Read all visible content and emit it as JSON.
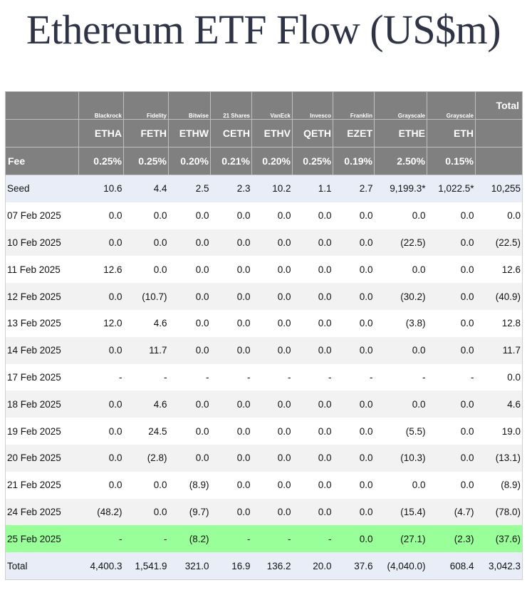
{
  "title": "Ethereum ETF Flow (US$m)",
  "issuers": [
    "Blackrock",
    "Fidelity",
    "Bitwise",
    "21 Shares",
    "VanEck",
    "Invesco",
    "Franklin",
    "Grayscale",
    "Grayscale"
  ],
  "total_label": "Total",
  "tickers": [
    "ETHA",
    "FETH",
    "ETHW",
    "CETH",
    "ETHV",
    "QETH",
    "EZET",
    "ETHE",
    "ETH"
  ],
  "fee_label": "Fee",
  "fees": [
    "0.25%",
    "0.25%",
    "0.20%",
    "0.21%",
    "0.20%",
    "0.25%",
    "0.19%",
    "2.50%",
    "0.15%"
  ],
  "rows": [
    {
      "label": "Seed",
      "values": [
        "10.6",
        "4.4",
        "2.5",
        "2.3",
        "10.2",
        "1.1",
        "2.7",
        "9,199.3*",
        "1,022.5*",
        "10,255"
      ]
    },
    {
      "label": "07 Feb 2025",
      "values": [
        "0.0",
        "0.0",
        "0.0",
        "0.0",
        "0.0",
        "0.0",
        "0.0",
        "0.0",
        "0.0",
        "0.0"
      ]
    },
    {
      "label": "10 Feb 2025",
      "values": [
        "0.0",
        "0.0",
        "0.0",
        "0.0",
        "0.0",
        "0.0",
        "0.0",
        "(22.5)",
        "0.0",
        "(22.5)"
      ]
    },
    {
      "label": "11 Feb 2025",
      "values": [
        "12.6",
        "0.0",
        "0.0",
        "0.0",
        "0.0",
        "0.0",
        "0.0",
        "0.0",
        "0.0",
        "12.6"
      ]
    },
    {
      "label": "12 Feb 2025",
      "values": [
        "0.0",
        "(10.7)",
        "0.0",
        "0.0",
        "0.0",
        "0.0",
        "0.0",
        "(30.2)",
        "0.0",
        "(40.9)"
      ]
    },
    {
      "label": "13 Feb 2025",
      "values": [
        "12.0",
        "4.6",
        "0.0",
        "0.0",
        "0.0",
        "0.0",
        "0.0",
        "(3.8)",
        "0.0",
        "12.8"
      ]
    },
    {
      "label": "14 Feb 2025",
      "values": [
        "0.0",
        "11.7",
        "0.0",
        "0.0",
        "0.0",
        "0.0",
        "0.0",
        "0.0",
        "0.0",
        "11.7"
      ]
    },
    {
      "label": "17 Feb 2025",
      "values": [
        "-",
        "-",
        "-",
        "-",
        "-",
        "-",
        "-",
        "-",
        "-",
        "0.0"
      ]
    },
    {
      "label": "18 Feb 2025",
      "values": [
        "0.0",
        "4.6",
        "0.0",
        "0.0",
        "0.0",
        "0.0",
        "0.0",
        "0.0",
        "0.0",
        "4.6"
      ]
    },
    {
      "label": "19 Feb 2025",
      "values": [
        "0.0",
        "24.5",
        "0.0",
        "0.0",
        "0.0",
        "0.0",
        "0.0",
        "(5.5)",
        "0.0",
        "19.0"
      ]
    },
    {
      "label": "20 Feb 2025",
      "values": [
        "0.0",
        "(2.8)",
        "0.0",
        "0.0",
        "0.0",
        "0.0",
        "0.0",
        "(10.3)",
        "0.0",
        "(13.1)"
      ]
    },
    {
      "label": "21 Feb 2025",
      "values": [
        "0.0",
        "0.0",
        "(8.9)",
        "0.0",
        "0.0",
        "0.0",
        "0.0",
        "0.0",
        "0.0",
        "(8.9)"
      ]
    },
    {
      "label": "24 Feb 2025",
      "values": [
        "(48.2)",
        "0.0",
        "(9.7)",
        "0.0",
        "0.0",
        "0.0",
        "0.0",
        "(15.4)",
        "(4.7)",
        "(78.0)"
      ]
    },
    {
      "label": "25 Feb 2025",
      "values": [
        "-",
        "-",
        "(8.2)",
        "-",
        "-",
        "-",
        "0.0",
        "(27.1)",
        "(2.3)",
        "(37.6)"
      ]
    },
    {
      "label": "Total",
      "values": [
        "4,400.3",
        "1,541.9",
        "321.0",
        "16.9",
        "136.2",
        "20.0",
        "37.6",
        "(4,040.0)",
        "608.4",
        "3,042.3"
      ]
    }
  ],
  "colors": {
    "header_bg": "#808080",
    "negative": "#d11a1a",
    "highlight_row": "#99ff99",
    "seed_total_bg": "#e9edf8",
    "stripe": "#f2f2f2"
  }
}
